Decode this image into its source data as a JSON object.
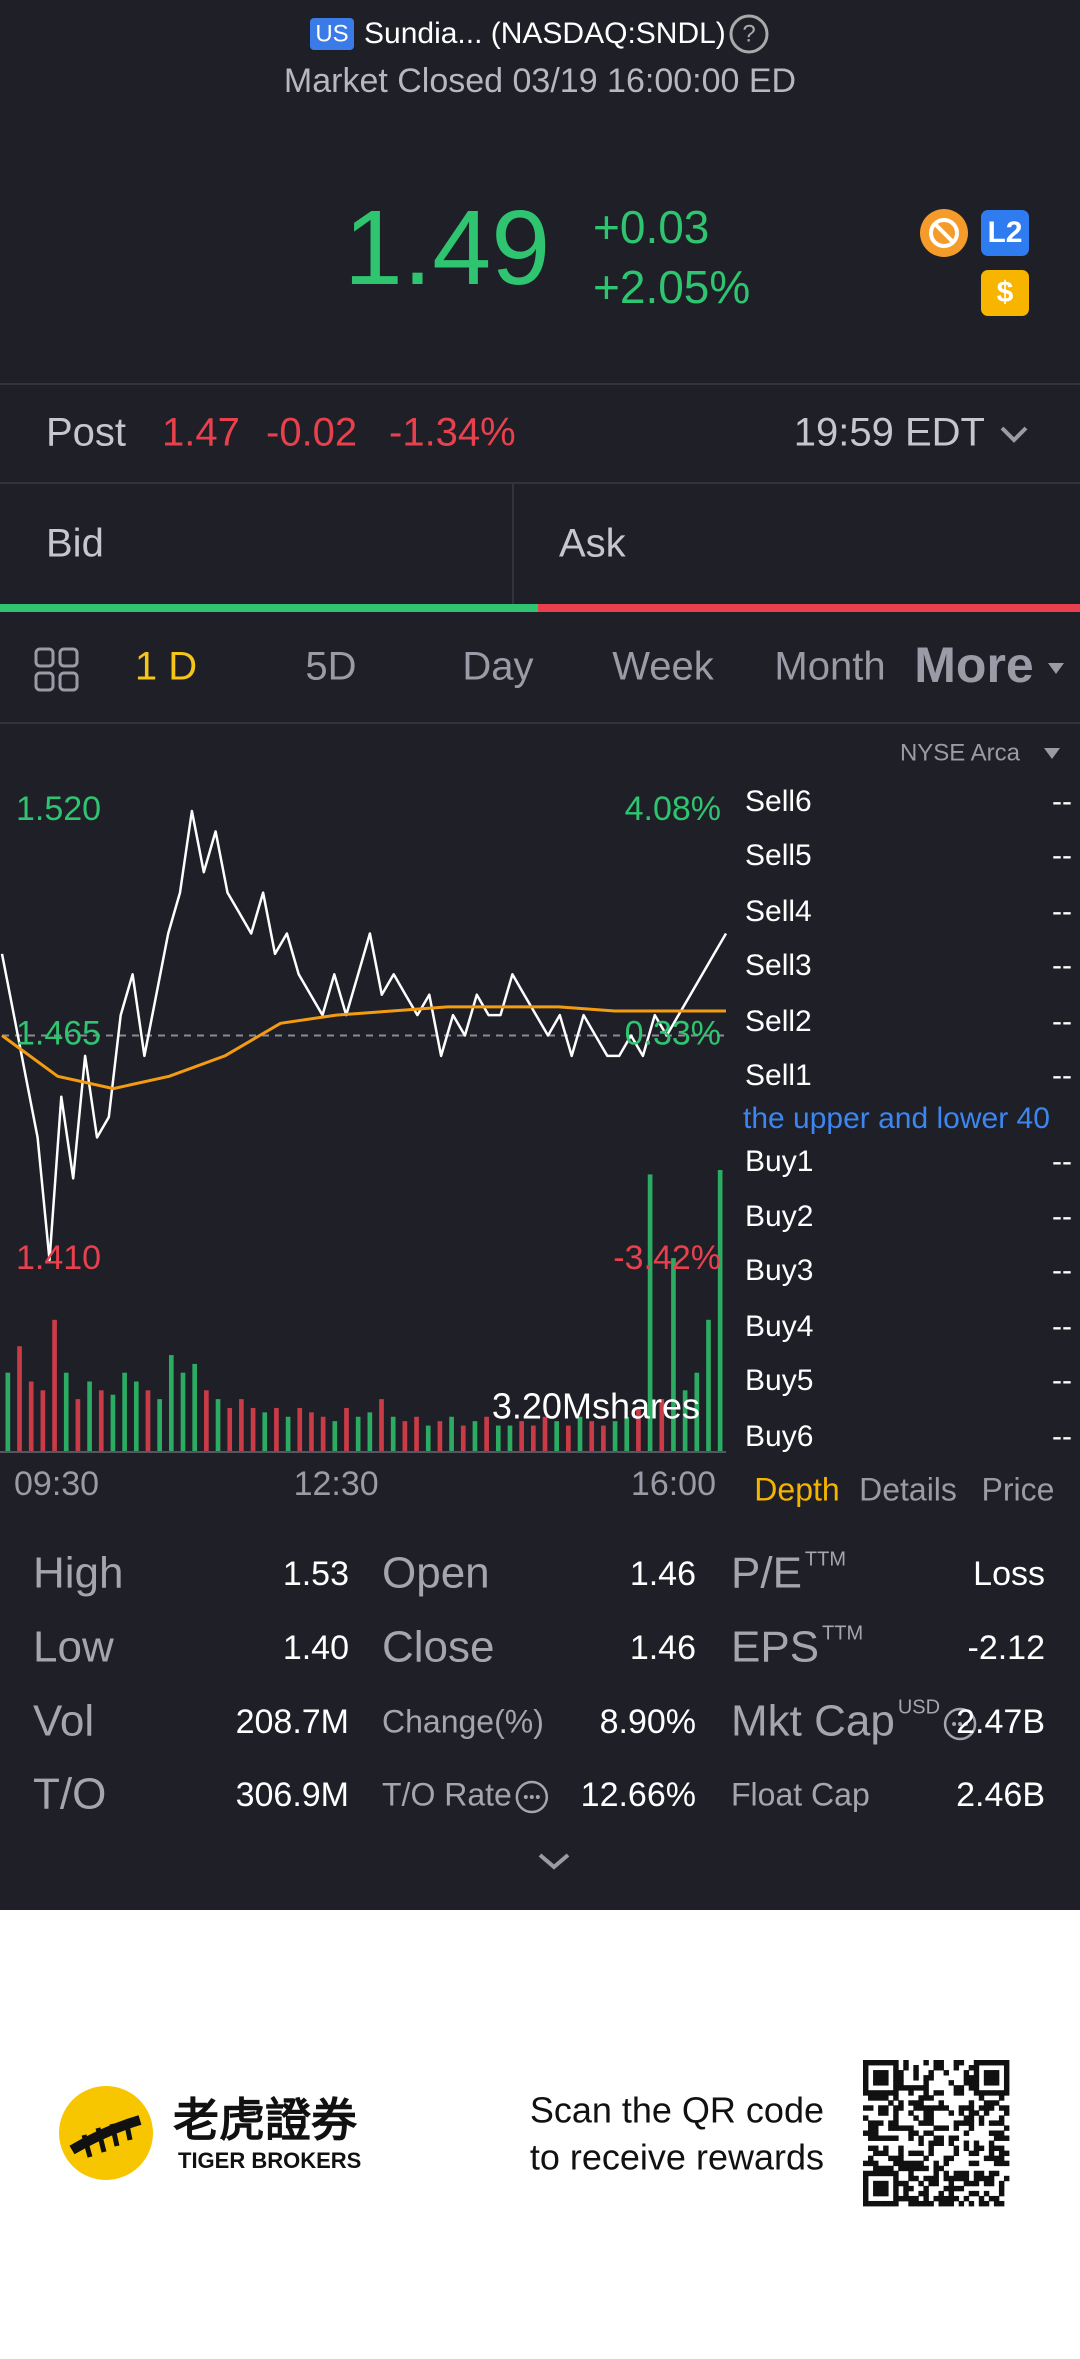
{
  "header": {
    "market_badge": "US",
    "title": "Sundia... (NASDAQ:SNDL)",
    "help": "?",
    "status": "Market Closed 03/19 16:00:00 ED"
  },
  "quote": {
    "price": "1.49",
    "change": "+0.03",
    "change_pct": "+2.05%",
    "badges": [
      "L2",
      "$"
    ]
  },
  "post": {
    "label": "Post",
    "price": "1.47",
    "change": "-0.02",
    "change_pct": "-1.34%",
    "time": "19:59 EDT"
  },
  "bid_ask": {
    "bid": "Bid",
    "ask": "Ask"
  },
  "tabs": [
    "1 D",
    "5D",
    "Day",
    "Week",
    "Month",
    "More"
  ],
  "chart_data": {
    "type": "line",
    "series": [
      {
        "color": "#ffffff",
        "values": [
          1.485,
          1.47,
          1.455,
          1.44,
          1.41,
          1.45,
          1.43,
          1.46,
          1.44,
          1.445,
          1.47,
          1.48,
          1.46,
          1.475,
          1.49,
          1.5,
          1.52,
          1.505,
          1.515,
          1.5,
          1.495,
          1.49,
          1.5,
          1.485,
          1.49,
          1.48,
          1.475,
          1.47,
          1.48,
          1.47,
          1.48,
          1.49,
          1.475,
          1.48,
          1.475,
          1.47,
          1.475,
          1.46,
          1.47,
          1.465,
          1.475,
          1.47,
          1.47,
          1.48,
          1.475,
          1.47,
          1.465,
          1.47,
          1.46,
          1.47,
          1.465,
          1.46,
          1.46,
          1.465,
          1.46,
          1.47,
          1.465,
          1.47,
          1.475,
          1.48,
          1.485,
          1.49
        ]
      },
      {
        "color": "#f39c12",
        "values": [
          1.465,
          1.455,
          1.452,
          1.455,
          1.46,
          1.468,
          1.47,
          1.471,
          1.472,
          1.472,
          1.472,
          1.471,
          1.471,
          1.471
        ]
      }
    ],
    "xlim": [
      0,
      390
    ],
    "xticks": [
      {
        "value": 0,
        "label": "09:30"
      },
      {
        "value": 180,
        "label": "12:30"
      },
      {
        "value": 390,
        "label": "16:00"
      }
    ],
    "ylim": [
      1.41,
      1.52
    ],
    "yticks": [
      {
        "value": 1.52,
        "label": "1.520"
      },
      1.465,
      {
        "value": 1.41,
        "label": "1.410"
      }
    ],
    "pct_ticks": [
      "4.08%",
      "0.33%",
      "-3.42%"
    ],
    "reference_line": 1.465,
    "up_color": "#2fc46f",
    "down_color": "#e8414d",
    "volume": {
      "label": "3.20Mshares",
      "ylim": [
        0,
        3200000
      ],
      "values": [
        900000,
        1200000,
        800000,
        700000,
        1500000,
        900000,
        600000,
        800000,
        700000,
        650000,
        900000,
        800000,
        700000,
        600000,
        1100000,
        900000,
        1000000,
        700000,
        600000,
        500000,
        600000,
        500000,
        450000,
        500000,
        400000,
        500000,
        450000,
        400000,
        350000,
        500000,
        400000,
        450000,
        600000,
        400000,
        350000,
        400000,
        300000,
        350000,
        400000,
        300000,
        350000,
        400000,
        300000,
        300000,
        350000,
        300000,
        400000,
        350000,
        300000,
        400000,
        350000,
        300000,
        350000,
        400000,
        500000,
        3150000,
        600000,
        2200000,
        700000,
        900000,
        1500000,
        3200000
      ]
    }
  },
  "order_book": {
    "exchange": "NYSE Arca",
    "sell": [
      {
        "label": "Sell6",
        "value": "--"
      },
      {
        "label": "Sell5",
        "value": "--"
      },
      {
        "label": "Sell4",
        "value": "--"
      },
      {
        "label": "Sell3",
        "value": "--"
      },
      {
        "label": "Sell2",
        "value": "--"
      },
      {
        "label": "Sell1",
        "value": "--"
      }
    ],
    "notice": "the upper and lower 40",
    "buy": [
      {
        "label": "Buy1",
        "value": "--"
      },
      {
        "label": "Buy2",
        "value": "--"
      },
      {
        "label": "Buy3",
        "value": "--"
      },
      {
        "label": "Buy4",
        "value": "--"
      },
      {
        "label": "Buy5",
        "value": "--"
      },
      {
        "label": "Buy6",
        "value": "--"
      }
    ],
    "tabs": [
      "Depth",
      "Details",
      "Price"
    ]
  },
  "stats": [
    [
      {
        "label": "High",
        "value": "1.53"
      },
      {
        "label": "Open",
        "value": "1.46"
      },
      {
        "label": "P/E",
        "sup": "TTM",
        "value": "Loss"
      }
    ],
    [
      {
        "label": "Low",
        "value": "1.40"
      },
      {
        "label": "Close",
        "value": "1.46"
      },
      {
        "label": "EPS",
        "sup": "TTM",
        "value": "-2.12"
      }
    ],
    [
      {
        "label": "Vol",
        "value": "208.7M"
      },
      {
        "label": "Change(%)",
        "value": "8.90%"
      },
      {
        "label": "Mkt Cap",
        "sup": "USD",
        "value": "2.47B"
      }
    ],
    [
      {
        "label": "T/O",
        "value": "306.9M"
      },
      {
        "label": "T/O Rate",
        "value": "12.66%"
      },
      {
        "label": "Float Cap",
        "value": "2.46B"
      }
    ]
  ],
  "footer": {
    "brand_cn": "老虎證券",
    "brand_en": "TIGER BROKERS",
    "cta": [
      "Scan the QR code",
      "to receive rewards"
    ]
  }
}
